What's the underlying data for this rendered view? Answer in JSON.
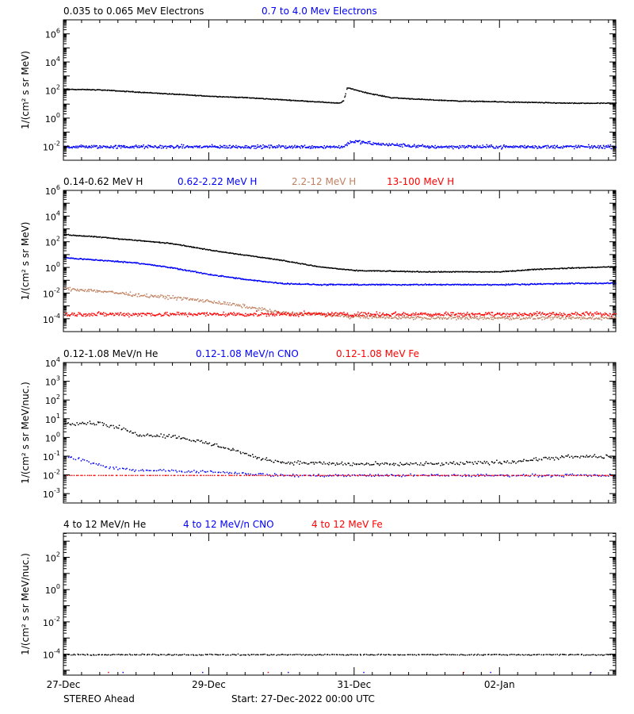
{
  "chart_data": [
    {
      "type": "scatter",
      "panel": "electrons",
      "ylabel": "1/(cm² s sr MeV)",
      "ylim_log10": [
        -3,
        7
      ],
      "yticks_log10": [
        -2,
        0,
        2,
        4,
        6
      ],
      "series": [
        {
          "name": "0.035 to 0.065 MeV Electrons",
          "color": "#000000",
          "x_days": [
            0,
            0.5,
            1,
            1.5,
            2,
            2.5,
            3,
            3.5,
            3.8,
            3.85,
            3.9,
            4.2,
            4.5,
            5,
            5.5,
            6,
            6.5,
            7,
            7.6
          ],
          "log10_y": [
            2.1,
            2.05,
            1.9,
            1.75,
            1.6,
            1.5,
            1.35,
            1.2,
            1.1,
            1.3,
            2.2,
            1.8,
            1.5,
            1.35,
            1.25,
            1.2,
            1.15,
            1.1,
            1.1
          ],
          "scatter": 0.04,
          "density": 700
        },
        {
          "name": "0.7 to 4.0 Mev Electrons",
          "color": "#0000ff",
          "x_days": [
            0,
            1,
            2,
            3,
            3.85,
            3.95,
            4.3,
            5,
            6,
            7,
            7.6
          ],
          "log10_y": [
            -2.0,
            -2.0,
            -2.0,
            -2.0,
            -2.0,
            -1.6,
            -1.8,
            -2.0,
            -2.0,
            -2.0,
            -2.0
          ],
          "scatter": 0.18,
          "density": 800
        }
      ]
    },
    {
      "type": "scatter",
      "panel": "protons",
      "ylabel": "1/(cm² s sr MeV)",
      "ylim_log10": [
        -5,
        6
      ],
      "yticks_log10": [
        -4,
        -2,
        0,
        2,
        4,
        6
      ],
      "series": [
        {
          "name": "0.14-0.62 MeV H",
          "color": "#000000",
          "x_days": [
            0,
            0.5,
            0.9,
            1.5,
            2,
            2.5,
            3,
            3.5,
            4,
            5,
            5.5,
            6,
            6.5,
            7,
            7.6
          ],
          "log10_y": [
            2.6,
            2.4,
            2.2,
            1.9,
            1.4,
            1.0,
            0.6,
            0.1,
            -0.2,
            -0.3,
            -0.3,
            -0.3,
            -0.1,
            0.0,
            0.1
          ],
          "scatter": 0.05,
          "density": 700
        },
        {
          "name": "0.62-2.22 MeV H",
          "color": "#0000ff",
          "x_days": [
            0,
            0.5,
            1,
            1.5,
            2,
            2.5,
            3,
            3.5,
            4,
            5,
            6,
            7,
            7.6
          ],
          "log10_y": [
            0.8,
            0.6,
            0.4,
            0.0,
            -0.5,
            -0.9,
            -1.2,
            -1.3,
            -1.3,
            -1.3,
            -1.3,
            -1.2,
            -1.2
          ],
          "scatter": 0.07,
          "density": 750
        },
        {
          "name": "2.2-12 MeV H",
          "color": "#c08060",
          "x_days": [
            0,
            0.5,
            1,
            1.5,
            2,
            2.5,
            3,
            3.5,
            4,
            5,
            6,
            7,
            7.6
          ],
          "log10_y": [
            -1.6,
            -1.8,
            -2.1,
            -2.3,
            -2.6,
            -3.0,
            -3.5,
            -3.6,
            -3.8,
            -3.9,
            -3.9,
            -3.9,
            -3.9
          ],
          "scatter": 0.2,
          "density": 600
        },
        {
          "name": "13-100 MeV H",
          "color": "#ff0000",
          "x_days": [
            0,
            2,
            4,
            6,
            7.6
          ],
          "log10_y": [
            -3.6,
            -3.6,
            -3.6,
            -3.6,
            -3.6
          ],
          "scatter": 0.25,
          "density": 700
        }
      ]
    },
    {
      "type": "scatter",
      "panel": "low-energy-ions",
      "ylabel": "1/(cm² s sr MeV/nuc.)",
      "ylim_log10": [
        -3.5,
        4
      ],
      "yticks_log10": [
        -3,
        -2,
        -1,
        0,
        1,
        2,
        3,
        4
      ],
      "series": [
        {
          "name": "0.12-1.08 MeV/n He",
          "color": "#000000",
          "x_days": [
            0,
            0.5,
            0.8,
            1.0,
            1.5,
            2.0,
            2.4,
            2.6,
            3,
            4,
            5,
            6,
            7,
            7.6
          ],
          "log10_y": [
            0.8,
            0.8,
            0.5,
            0.2,
            0.1,
            -0.3,
            -0.7,
            -1.0,
            -1.3,
            -1.4,
            -1.4,
            -1.3,
            -1.0,
            -1.0
          ],
          "scatter": 0.15,
          "density": 400
        },
        {
          "name": "0.12-1.08 MeV/n CNO",
          "color": "#0000ff",
          "x_days": [
            0,
            0.3,
            0.6,
            1.0,
            2.0,
            3,
            4,
            5,
            6,
            7,
            7.6
          ],
          "log10_y": [
            -1.0,
            -1.2,
            -1.6,
            -1.7,
            -1.8,
            -2.0,
            -2.0,
            -2.0,
            -2.0,
            -2.0,
            -2.0
          ],
          "scatter": 0.1,
          "density": 300
        },
        {
          "name": "0.12-1.08 MeV Fe",
          "color": "#ff0000",
          "x_days": [
            0,
            2,
            4,
            6,
            7.6
          ],
          "log10_y": [
            -2.0,
            -2.0,
            -2.0,
            -2.0,
            -2.0
          ],
          "scatter": 0.0,
          "density": 250
        }
      ]
    },
    {
      "type": "scatter",
      "panel": "high-energy-ions",
      "ylabel": "1/(cm² s sr MeV/nuc.)",
      "ylim_log10": [
        -5.3,
        3.5
      ],
      "yticks_log10": [
        -4,
        -2,
        0,
        2
      ],
      "series": [
        {
          "name": "4 to 12 MeV/n He",
          "color": "#000000",
          "x_days": [
            0,
            2,
            4,
            6,
            7.6
          ],
          "log10_y": [
            -4.0,
            -4.0,
            -4.0,
            -4.0,
            -4.0
          ],
          "scatter": 0.05,
          "density": 350
        },
        {
          "name": "4 to 12 MeV/n CNO",
          "color": "#0000ff",
          "x_days": [
            0,
            7.6
          ],
          "log10_y": [
            -5.1,
            -5.1
          ],
          "scatter": 0.0,
          "density": 6
        },
        {
          "name": "4 to 12 MeV Fe",
          "color": "#ff0000",
          "x_days": [
            0,
            7.6
          ],
          "log10_y": [
            -5.1,
            -5.1
          ],
          "scatter": 0.0,
          "density": 3
        }
      ]
    }
  ],
  "x_axis": {
    "tick_labels": [
      "27-Dec",
      "29-Dec",
      "31-Dec",
      "02-Jan"
    ],
    "tick_days": [
      0,
      2,
      4,
      6
    ],
    "xlim_days": [
      0,
      7.6
    ]
  },
  "footer": {
    "spacecraft": "STEREO Ahead",
    "start": "Start: 27-Dec-2022 00:00 UTC"
  }
}
